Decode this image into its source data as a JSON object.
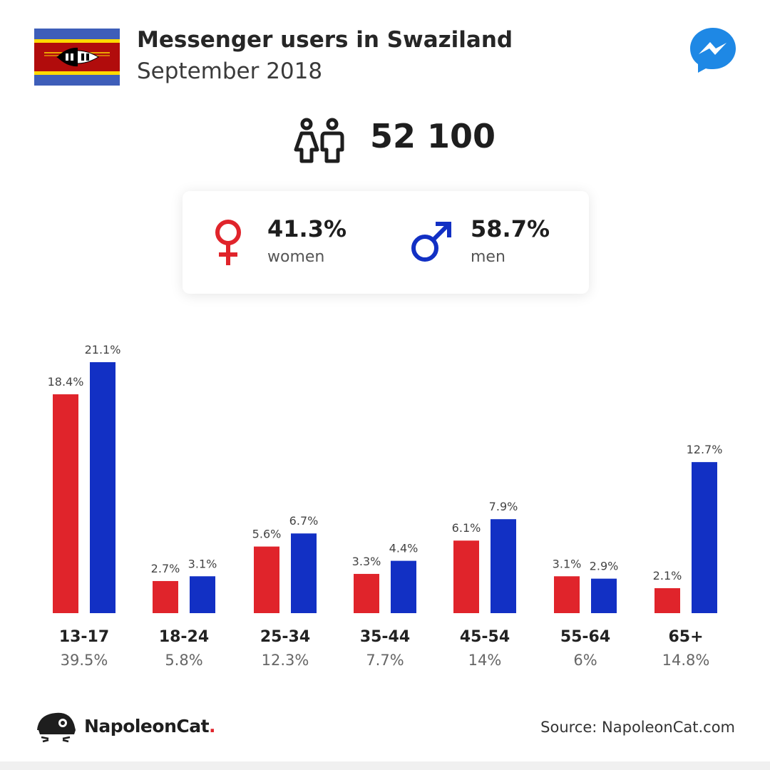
{
  "header": {
    "title": "Messenger users in Swaziland",
    "subtitle": "September 2018",
    "flag_icon": "swaziland-flag-icon",
    "app_icon": "messenger-icon"
  },
  "total": {
    "icon": "people-icon",
    "value": "52 100"
  },
  "gender": {
    "women": {
      "percent": "41.3%",
      "label": "women",
      "icon": "female-symbol-icon",
      "color": "#e0242b"
    },
    "men": {
      "percent": "58.7%",
      "label": "men",
      "icon": "male-symbol-icon",
      "color": "#1230c4"
    }
  },
  "chart_data": {
    "type": "bar",
    "categories": [
      "13-17",
      "18-24",
      "25-34",
      "35-44",
      "45-54",
      "55-64",
      "65+"
    ],
    "category_totals": [
      "39.5%",
      "5.8%",
      "12.3%",
      "7.7%",
      "14%",
      "6%",
      "14.8%"
    ],
    "series": [
      {
        "name": "women",
        "color": "#e0242b",
        "values": [
          18.4,
          2.7,
          5.6,
          3.3,
          6.1,
          3.1,
          2.1
        ],
        "labels": [
          "18.4%",
          "2.7%",
          "5.6%",
          "3.3%",
          "6.1%",
          "3.1%",
          "2.1%"
        ]
      },
      {
        "name": "men",
        "color": "#1230c4",
        "values": [
          21.1,
          3.1,
          6.7,
          4.4,
          7.9,
          2.9,
          12.7
        ],
        "labels": [
          "21.1%",
          "3.1%",
          "6.7%",
          "4.4%",
          "7.9%",
          "2.9%",
          "12.7%"
        ]
      }
    ],
    "title": "",
    "xlabel": "",
    "ylabel": "",
    "ylim": [
      0,
      21.1
    ],
    "grid": false,
    "legend": "none"
  },
  "footer": {
    "brand": "NapoleonCat",
    "brand_dot": ".",
    "brand_icon": "napoleoncat-logo-icon",
    "source": "Source: NapoleonCat.com"
  }
}
